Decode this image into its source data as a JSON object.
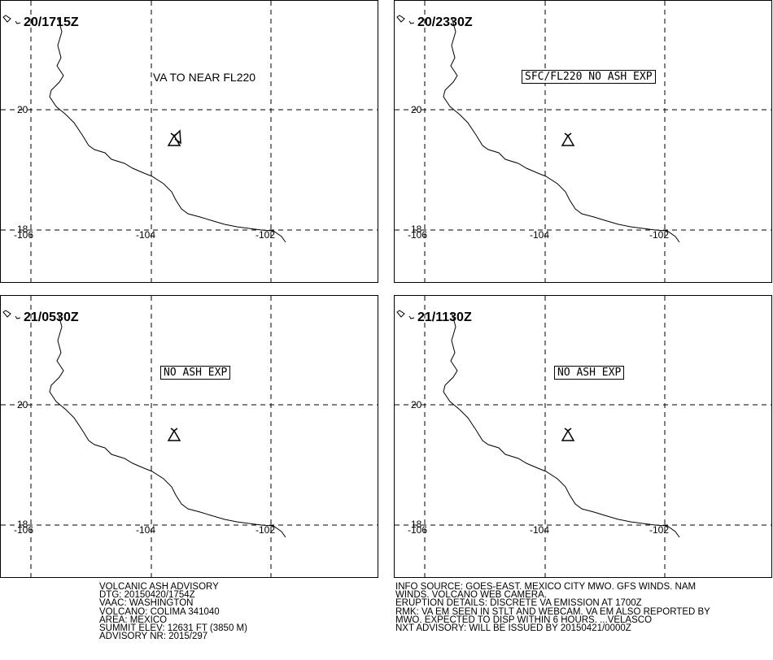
{
  "panels": [
    {
      "time": "20/1715Z",
      "label": "VA TO NEAR FL220",
      "boxed": false
    },
    {
      "time": "20/2330Z",
      "label": "SFC/FL220 NO ASH EXP",
      "boxed": true
    },
    {
      "time": "21/0530Z",
      "label": "NO ASH EXP",
      "boxed": true
    },
    {
      "time": "21/1130Z",
      "label": "NO ASH EXP",
      "boxed": true
    }
  ],
  "grid_labels": {
    "lat_upper": "20",
    "lat_lower": "18",
    "lon_west": "-106",
    "lon_mid": "-104",
    "lon_east": "-102"
  },
  "advisory_left": [
    "VOLCANIC ASH ADVISORY",
    "DTG: 20150420/1754Z",
    "VAAC: WASHINGTON",
    "VOLCANO: COLIMA 341040",
    "AREA: MEXICO",
    "SUMMIT ELEV: 12631 FT (3850 M)",
    "ADVISORY NR: 2015/297"
  ],
  "advisory_right": [
    "INFO SOURCE: GOES-EAST. MEXICO CITY MWO. GFS WINDS. NAM",
    "WINDS. VOLCANO WEB CAMERA.",
    "ERUPTION DETAILS: DISCRETE VA EMISSION AT 1700Z",
    "RMK: VA EM SEEN IN STLT AND WEBCAM. VA EM ALSO REPORTED BY",
    "MWO. EXPECTED TO DISP WITHIN 6 HOURS. ...VELASCO",
    "NXT ADVISORY: WILL BE ISSUED BY 20150421/0000Z"
  ],
  "icons": {
    "volcano": "volcano-triangle-icon",
    "ash_cloud": "ash-plume-icon"
  }
}
